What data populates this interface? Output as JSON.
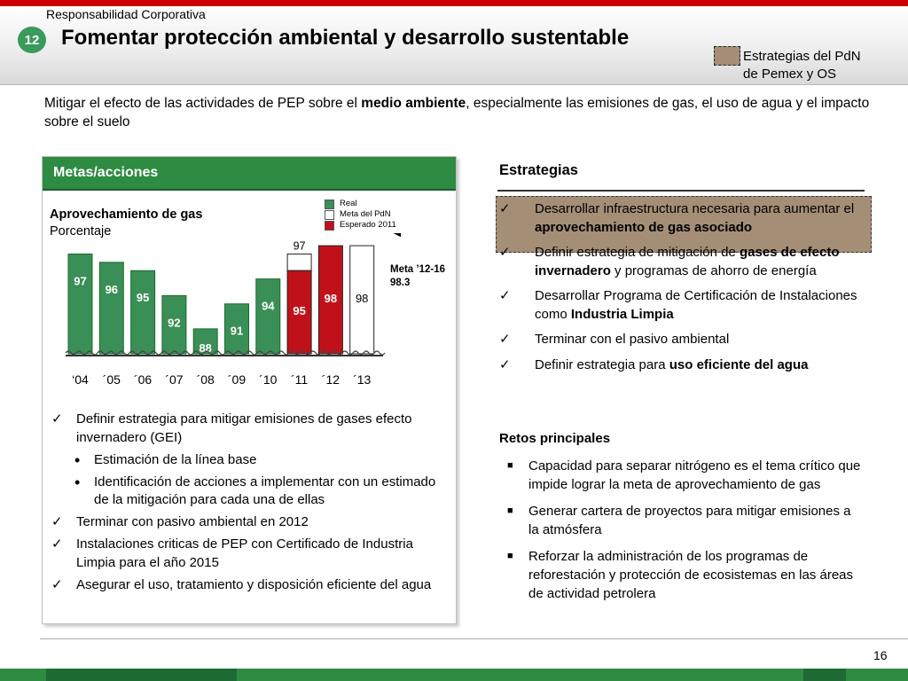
{
  "header": {
    "section": "Responsabilidad Corporativa",
    "number": "12",
    "title": "Fomentar protección ambiental y desarrollo sustentable",
    "legend_line1": "Estrategias del PdN",
    "legend_line2": "de Pemex y OS"
  },
  "intro": {
    "pre": "Mitigar el efecto de las actividades de PEP sobre el ",
    "bold": "medio ambiente",
    "post": ", especialmente las emisiones de gas, el uso de agua y el impacto sobre el suelo"
  },
  "left_panel": {
    "title": "Metas/acciones",
    "chart_title": "Aprovechamiento de gas",
    "chart_unit": "Porcentaje",
    "meta_label_1": "Meta ’12-16",
    "meta_label_2": "98.3",
    "bullets": [
      {
        "text": "Definir estrategia para mitigar emisiones de gases efecto invernadero (GEI)"
      },
      {
        "text": "Estimación de la línea base"
      },
      {
        "text": "Identificación de acciones a implementar con un estimado de la mitigación para cada una de ellas"
      },
      {
        "text": "Terminar con pasivo ambiental en 2012"
      },
      {
        "text": "Instalaciones criticas de PEP con Certificado de Industria Limpia para el año 2015"
      },
      {
        "text": "Asegurar el uso, tratamiento y disposición eficiente del agua"
      }
    ]
  },
  "chart_data": {
    "type": "bar",
    "title": "Aprovechamiento de gas",
    "ylabel": "Porcentaje",
    "categories": [
      "‘04",
      "´05",
      "´06",
      "´07",
      "´08",
      "´09",
      "´10",
      "´11",
      "´12",
      "´13"
    ],
    "series": [
      {
        "name": "Real",
        "values": [
          97,
          96,
          95,
          92,
          88,
          91,
          94,
          95,
          null,
          null
        ]
      },
      {
        "name": "Meta del PdN",
        "values": [
          null,
          null,
          null,
          null,
          null,
          null,
          null,
          97,
          null,
          98
        ]
      },
      {
        "name": "Esperado 2011",
        "values": [
          null,
          null,
          null,
          null,
          null,
          null,
          null,
          95,
          98,
          null
        ]
      }
    ],
    "bar_kind": [
      "real",
      "real",
      "real",
      "real",
      "real",
      "real",
      "real",
      "split",
      "esperado",
      "meta"
    ],
    "bar_labels": [
      "97",
      "96",
      "95",
      "92",
      "88",
      "91",
      "94",
      "95",
      "98",
      "98"
    ],
    "top_labels": [
      "",
      "",
      "",
      "",
      "",
      "",
      "",
      "97",
      "",
      ""
    ],
    "target_line": 98.3,
    "colors": {
      "real": "#3a8f56",
      "meta": "#ffffff",
      "esperado": "#c0111b"
    },
    "ylim": [
      85,
      99.5
    ]
  },
  "right": {
    "strategies_title": "Estrategias",
    "strategies": [
      {
        "pre": "Desarrollar infraestructura necesaria para aumentar el ",
        "bold": "aprovechamiento de gas asociado",
        "post": ""
      },
      {
        "pre": "Definir estrategia de mitigación de ",
        "bold": "gases de efecto invernadero",
        "post": " y programas de ahorro de energía"
      },
      {
        "pre": "Desarrollar Programa de Certificación de Instalaciones como ",
        "bold": "Industria Limpia",
        "post": ""
      },
      {
        "pre": "Terminar con el pasivo ambiental",
        "bold": "",
        "post": ""
      },
      {
        "pre": "Definir estrategia para ",
        "bold": "uso eficiente del agua",
        "post": ""
      }
    ],
    "retos_title": "Retos principales",
    "retos": [
      "Capacidad para separar nitrógeno es el tema crítico que impide lograr la meta de aprovechamiento de gas",
      "Generar cartera de proyectos para mitigar emisiones a la atmósfera",
      "Reforzar la administración de los programas de reforestación y protección de ecosistemas en las áreas de actividad petrolera"
    ]
  },
  "footer": {
    "page": "16"
  }
}
